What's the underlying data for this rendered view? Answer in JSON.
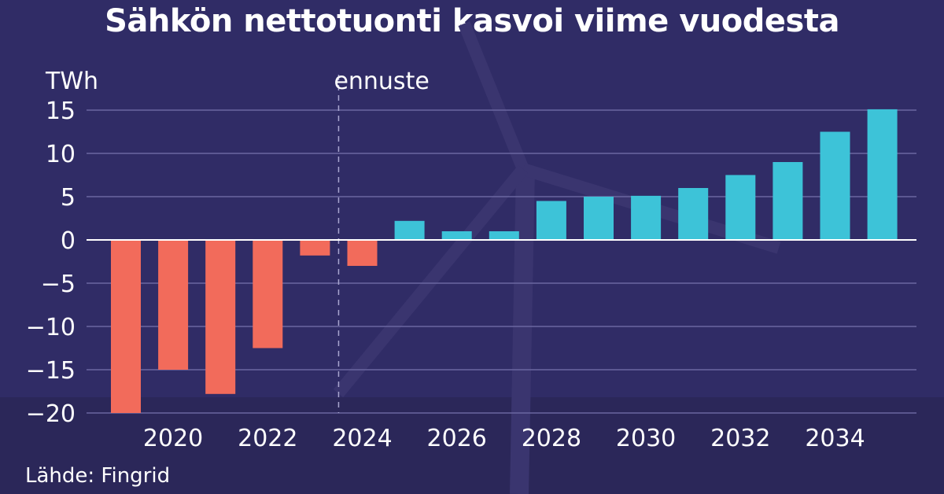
{
  "chart_data": {
    "type": "bar",
    "title": "Sähkön nettotuonti kasvoi viime vuodesta",
    "ylabel": "TWh",
    "xlabel": "",
    "annotation": "ennuste",
    "source": "Lähde: Fingrid",
    "categories": [
      2019,
      2020,
      2021,
      2022,
      2023,
      2024,
      2025,
      2026,
      2027,
      2028,
      2029,
      2030,
      2031,
      2032,
      2033,
      2034,
      2035
    ],
    "values": [
      -20,
      -15,
      -17.8,
      -12.5,
      -1.8,
      -3,
      2.2,
      1,
      1,
      4.5,
      5,
      5.1,
      6,
      7.5,
      9,
      12.5,
      15.1
    ],
    "forecast_start": 2024,
    "xticks": [
      2020,
      2022,
      2024,
      2026,
      2028,
      2030,
      2032,
      2034
    ],
    "ytick_labels": [
      "15",
      "10",
      "5",
      "0",
      "−5",
      "−10",
      "−15",
      "−20"
    ],
    "ylim": [
      -20,
      15
    ],
    "grid": true,
    "colors": {
      "negative": "#f26b5b",
      "positive": "#3dc3d8",
      "background": "#302c66"
    }
  }
}
